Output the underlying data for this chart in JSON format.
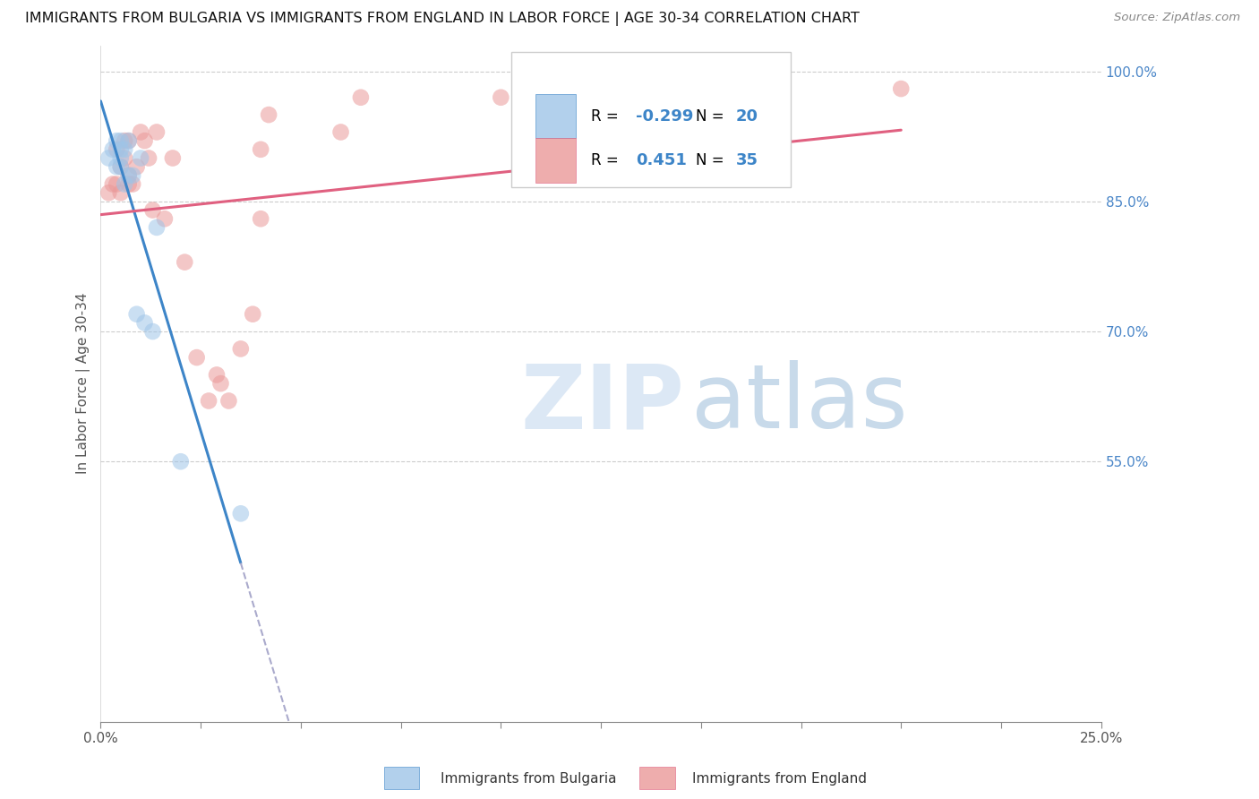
{
  "title": "IMMIGRANTS FROM BULGARIA VS IMMIGRANTS FROM ENGLAND IN LABOR FORCE | AGE 30-34 CORRELATION CHART",
  "source": "Source: ZipAtlas.com",
  "ylabel": "In Labor Force | Age 30-34",
  "xlim": [
    0.0,
    0.25
  ],
  "ylim": [
    0.25,
    1.03
  ],
  "yticks_right": [
    0.55,
    0.7,
    0.85,
    1.0
  ],
  "yticklabels_right": [
    "55.0%",
    "70.0%",
    "85.0%",
    "100.0%"
  ],
  "legend1_label": "Immigrants from Bulgaria",
  "legend2_label": "Immigrants from England",
  "r_bulgaria": -0.299,
  "n_bulgaria": 20,
  "r_england": 0.451,
  "n_england": 35,
  "blue_color": "#9fc5e8",
  "pink_color": "#ea9999",
  "blue_line_color": "#3d85c8",
  "pink_line_color": "#e06080",
  "gray_dashed_color": "#aaaacc",
  "bulgaria_x": [
    0.002,
    0.003,
    0.004,
    0.004,
    0.005,
    0.005,
    0.005,
    0.005,
    0.006,
    0.006,
    0.007,
    0.007,
    0.008,
    0.009,
    0.01,
    0.011,
    0.013,
    0.014,
    0.02,
    0.035
  ],
  "bulgaria_y": [
    0.9,
    0.91,
    0.92,
    0.89,
    0.91,
    0.92,
    0.89,
    0.9,
    0.91,
    0.87,
    0.92,
    0.88,
    0.88,
    0.72,
    0.9,
    0.71,
    0.7,
    0.82,
    0.55,
    0.49
  ],
  "england_x": [
    0.002,
    0.003,
    0.004,
    0.004,
    0.005,
    0.005,
    0.006,
    0.006,
    0.007,
    0.007,
    0.007,
    0.008,
    0.009,
    0.01,
    0.011,
    0.012,
    0.013,
    0.014,
    0.016,
    0.018,
    0.021,
    0.024,
    0.027,
    0.029,
    0.03,
    0.032,
    0.035,
    0.038,
    0.04,
    0.04,
    0.042,
    0.06,
    0.065,
    0.1,
    0.2
  ],
  "england_y": [
    0.86,
    0.87,
    0.87,
    0.91,
    0.86,
    0.89,
    0.9,
    0.92,
    0.87,
    0.88,
    0.92,
    0.87,
    0.89,
    0.93,
    0.92,
    0.9,
    0.84,
    0.93,
    0.83,
    0.9,
    0.78,
    0.67,
    0.62,
    0.65,
    0.64,
    0.62,
    0.68,
    0.72,
    0.91,
    0.83,
    0.95,
    0.93,
    0.97,
    0.97,
    0.98
  ],
  "dot_size": 180,
  "dot_alpha": 0.55,
  "line_width": 2.2,
  "n_xticks": 10
}
